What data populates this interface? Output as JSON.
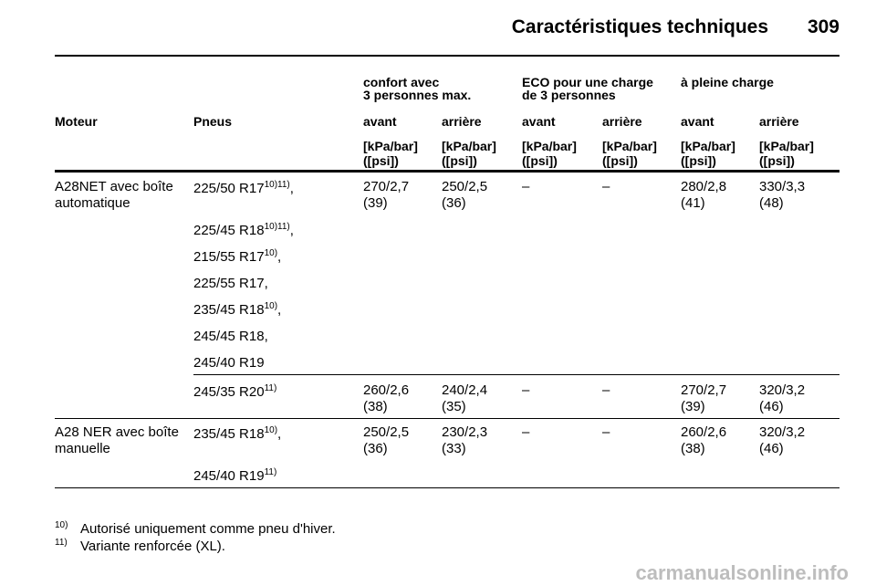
{
  "header": {
    "title": "Caractéristiques techniques",
    "page": "309"
  },
  "table": {
    "load_groups": [
      [
        "confort avec",
        "3 personnes max."
      ],
      [
        "ECO pour une charge",
        "de 3 personnes"
      ],
      [
        "à pleine charge"
      ]
    ],
    "columns": [
      "Moteur",
      "Pneus",
      "avant",
      "arrière",
      "avant",
      "arrière",
      "avant",
      "arrière"
    ],
    "units": [
      [
        "[kPa/bar]",
        "([psi])"
      ],
      [
        "[kPa/bar]",
        "([psi])"
      ],
      [
        "[kPa/bar]",
        "([psi])"
      ],
      [
        "[kPa/bar]",
        "([psi])"
      ],
      [
        "[kPa/bar]",
        "([psi])"
      ],
      [
        "[kPa/bar]",
        "([psi])"
      ]
    ],
    "rows": [
      {
        "engine": [
          "A28NET avec boîte",
          "automatique"
        ],
        "tire_sets": [
          {
            "tires": [
              {
                "size": "225/50 R17",
                "notes": "10)11)",
                "sep": ","
              },
              {
                "size": "225/45 R18",
                "notes": "10)11)",
                "sep": ","
              },
              {
                "size": "215/55 R17",
                "notes": "10)",
                "sep": ","
              },
              {
                "size": "225/55 R17",
                "sep": ","
              },
              {
                "size": "235/45 R18",
                "notes": "10)",
                "sep": ","
              },
              {
                "size": "245/45 R18",
                "sep": ","
              },
              {
                "size": "245/40 R19"
              }
            ],
            "pressures": [
              [
                "270/2,7",
                "(39)"
              ],
              [
                "250/2,5",
                "(36)"
              ],
              [
                "–"
              ],
              [
                "–"
              ],
              [
                "280/2,8",
                "(41)"
              ],
              [
                "330/3,3",
                "(48)"
              ]
            ]
          },
          {
            "tires": [
              {
                "size": "245/35 R20",
                "notes": "11)"
              }
            ],
            "pressures": [
              [
                "260/2,6",
                "(38)"
              ],
              [
                "240/2,4",
                "(35)"
              ],
              [
                "–"
              ],
              [
                "–"
              ],
              [
                "270/2,7",
                "(39)"
              ],
              [
                "320/3,2",
                "(46)"
              ]
            ]
          }
        ]
      },
      {
        "engine": [
          "A28 NER avec boîte",
          "manuelle"
        ],
        "tire_sets": [
          {
            "tires": [
              {
                "size": "235/45 R18",
                "notes": "10)",
                "sep": ","
              },
              {
                "size": "245/40 R19",
                "notes": "11)"
              }
            ],
            "pressures": [
              [
                "250/2,5",
                "(36)"
              ],
              [
                "230/2,3",
                "(33)"
              ],
              [
                "–"
              ],
              [
                "–"
              ],
              [
                "260/2,6",
                "(38)"
              ],
              [
                "320/3,2",
                "(46)"
              ]
            ]
          }
        ]
      }
    ]
  },
  "footnotes": [
    {
      "mark": "10)",
      "text": "Autorisé uniquement comme pneu d'hiver."
    },
    {
      "mark": "11)",
      "text": "Variante renforcée (XL)."
    }
  ],
  "watermark": "carmanualsonline.info"
}
